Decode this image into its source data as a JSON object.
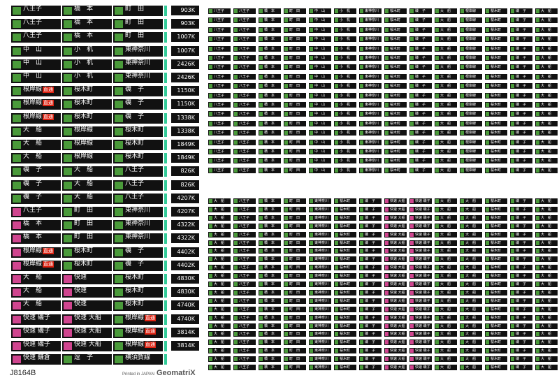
{
  "sheet": {
    "sku": "J8164B",
    "printed": "Printed in JAPAN",
    "brand": "GeomatriX"
  },
  "colors": {
    "plate": "#111111",
    "green": "#4a9a3a",
    "pink": "#d0458f",
    "red": "#dd2211",
    "endcap": "#33cc99"
  },
  "large_rows": [
    {
      "cells": [
        {
          "t": "八王子",
          "c": "green"
        },
        {
          "t": "橋　本",
          "c": "green"
        },
        {
          "t": "町　田",
          "c": "green"
        }
      ],
      "code": "903K"
    },
    {
      "cells": [
        {
          "t": "八王子",
          "c": "green"
        },
        {
          "t": "橋　本",
          "c": "green"
        },
        {
          "t": "町　田",
          "c": "green"
        }
      ],
      "code": "903K"
    },
    {
      "cells": [
        {
          "t": "八王子",
          "c": "green"
        },
        {
          "t": "橋　本",
          "c": "green"
        },
        {
          "t": "町　田",
          "c": "green"
        }
      ],
      "code": "1007K"
    },
    {
      "cells": [
        {
          "t": "中　山",
          "c": "green"
        },
        {
          "t": "小　机",
          "c": "green"
        },
        {
          "t": "東神奈川",
          "c": "green"
        }
      ],
      "code": "1007K"
    },
    {
      "cells": [
        {
          "t": "中　山",
          "c": "green"
        },
        {
          "t": "小　机",
          "c": "green"
        },
        {
          "t": "東神奈川",
          "c": "green"
        }
      ],
      "code": "2426K"
    },
    {
      "cells": [
        {
          "t": "中　山",
          "c": "green"
        },
        {
          "t": "小　机",
          "c": "green"
        },
        {
          "t": "東神奈川",
          "c": "green"
        }
      ],
      "code": "2426K"
    },
    {
      "cells": [
        {
          "t": "根岸線",
          "c": "green",
          "red": "直通"
        },
        {
          "t": "桜木町",
          "c": "green"
        },
        {
          "t": "磯　子",
          "c": "green"
        }
      ],
      "code": "1150K"
    },
    {
      "cells": [
        {
          "t": "根岸線",
          "c": "green",
          "red": "直通"
        },
        {
          "t": "桜木町",
          "c": "green"
        },
        {
          "t": "磯　子",
          "c": "green"
        }
      ],
      "code": "1150K"
    },
    {
      "cells": [
        {
          "t": "根岸線",
          "c": "green",
          "red": "直通"
        },
        {
          "t": "桜木町",
          "c": "green"
        },
        {
          "t": "磯　子",
          "c": "green"
        }
      ],
      "code": "1338K"
    },
    {
      "cells": [
        {
          "t": "大　船",
          "c": "green"
        },
        {
          "t": "根岸線",
          "c": "green"
        },
        {
          "t": "桜木町",
          "c": "green"
        }
      ],
      "code": "1338K"
    },
    {
      "cells": [
        {
          "t": "大　船",
          "c": "green"
        },
        {
          "t": "根岸線",
          "c": "green"
        },
        {
          "t": "桜木町",
          "c": "green"
        }
      ],
      "code": "1849K"
    },
    {
      "cells": [
        {
          "t": "大　船",
          "c": "green"
        },
        {
          "t": "根岸線",
          "c": "green"
        },
        {
          "t": "桜木町",
          "c": "green"
        }
      ],
      "code": "1849K"
    },
    {
      "cells": [
        {
          "t": "磯　子",
          "c": "green"
        },
        {
          "t": "大　船",
          "c": "green"
        },
        {
          "t": "八王子",
          "c": "green"
        }
      ],
      "code": "826K"
    },
    {
      "cells": [
        {
          "t": "磯　子",
          "c": "green"
        },
        {
          "t": "大　船",
          "c": "green"
        },
        {
          "t": "八王子",
          "c": "green"
        }
      ],
      "code": "826K"
    },
    {
      "cells": [
        {
          "t": "磯　子",
          "c": "green"
        },
        {
          "t": "大　船",
          "c": "green"
        },
        {
          "t": "八王子",
          "c": "green"
        }
      ],
      "code": "4207K"
    },
    {
      "cells": [
        {
          "t": "八王子",
          "c": "pink"
        },
        {
          "t": "町　田",
          "c": "green"
        },
        {
          "t": "東神奈川",
          "c": "green"
        }
      ],
      "code": "4207K"
    },
    {
      "cells": [
        {
          "t": "橋　本",
          "c": "pink"
        },
        {
          "t": "町　田",
          "c": "green"
        },
        {
          "t": "東神奈川",
          "c": "green"
        }
      ],
      "code": "4322K"
    },
    {
      "cells": [
        {
          "t": "橋　本",
          "c": "pink"
        },
        {
          "t": "町　田",
          "c": "green"
        },
        {
          "t": "東神奈川",
          "c": "green"
        }
      ],
      "code": "4322K"
    },
    {
      "cells": [
        {
          "t": "根岸線",
          "c": "pink",
          "red": "直通"
        },
        {
          "t": "桜木町",
          "c": "green"
        },
        {
          "t": "磯　子",
          "c": "green"
        }
      ],
      "code": "4402K"
    },
    {
      "cells": [
        {
          "t": "根岸線",
          "c": "pink",
          "red": "直通"
        },
        {
          "t": "桜木町",
          "c": "green"
        },
        {
          "t": "磯　子",
          "c": "green"
        }
      ],
      "code": "4402K"
    },
    {
      "cells": [
        {
          "t": "大　船",
          "c": "pink"
        },
        {
          "t": "快速",
          "c": "pink"
        },
        {
          "t": "桜木町",
          "c": "green"
        }
      ],
      "code": "4830K"
    },
    {
      "cells": [
        {
          "t": "大　船",
          "c": "pink"
        },
        {
          "t": "快速",
          "c": "pink"
        },
        {
          "t": "桜木町",
          "c": "green"
        }
      ],
      "code": "4830K"
    },
    {
      "cells": [
        {
          "t": "大　船",
          "c": "pink"
        },
        {
          "t": "快速",
          "c": "pink"
        },
        {
          "t": "桜木町",
          "c": "green"
        }
      ],
      "code": "4740K"
    },
    {
      "cells": [
        {
          "t": "快速 磯子",
          "c": "pink"
        },
        {
          "t": "快速 大船",
          "c": "pink"
        },
        {
          "t": "根岸線",
          "c": "green",
          "red": "直通"
        }
      ],
      "code": "4740K"
    },
    {
      "cells": [
        {
          "t": "快速 磯子",
          "c": "pink"
        },
        {
          "t": "快速 大船",
          "c": "pink"
        },
        {
          "t": "根岸線",
          "c": "green",
          "red": "直通"
        }
      ],
      "code": "3814K"
    },
    {
      "cells": [
        {
          "t": "快速 磯子",
          "c": "pink"
        },
        {
          "t": "快速 大船",
          "c": "pink"
        },
        {
          "t": "根岸線",
          "c": "green",
          "red": "直通"
        }
      ],
      "code": "3814K"
    },
    {
      "cells": [
        {
          "t": "快速 鎌倉",
          "c": "pink"
        },
        {
          "t": "逗　子",
          "c": "green"
        },
        {
          "t": "横須賀線",
          "c": "green"
        }
      ],
      "code": ""
    }
  ],
  "small_top_rows": [
    [
      "八王子",
      "八王子",
      "橋　本",
      "町　田",
      "中　山",
      "小　机",
      "東神奈川",
      "桜木町",
      "磯　子",
      "大　船",
      "根岸線",
      "桜木町",
      "磯　子",
      "大　船"
    ],
    [
      "八王子",
      "八王子",
      "橋　本",
      "町　田",
      "中　山",
      "小　机",
      "東神奈川",
      "桜木町",
      "磯　子",
      "大　船",
      "根岸線",
      "桜木町",
      "磯　子",
      "大　船"
    ],
    [
      "八王子",
      "八王子",
      "橋　本",
      "町　田",
      "中　山",
      "小　机",
      "東神奈川",
      "桜木町",
      "磯　子",
      "大　船",
      "根岸線",
      "桜木町",
      "磯　子",
      "大　船"
    ],
    [
      "八王子",
      "八王子",
      "橋　本",
      "町　田",
      "中　山",
      "小　机",
      "東神奈川",
      "桜木町",
      "磯　子",
      "大　船",
      "根岸線",
      "桜木町",
      "磯　子",
      "大　船"
    ],
    [
      "八王子",
      "八王子",
      "橋　本",
      "町　田",
      "中　山",
      "小　机",
      "東神奈川",
      "桜木町",
      "磯　子",
      "大　船",
      "根岸線",
      "桜木町",
      "磯　子",
      "大　船"
    ],
    [
      "八王子",
      "八王子",
      "橋　本",
      "町　田",
      "中　山",
      "小　机",
      "東神奈川",
      "桜木町",
      "磯　子",
      "大　船",
      "根岸線",
      "桜木町",
      "磯　子",
      "大　船"
    ],
    [
      "八王子",
      "八王子",
      "橋　本",
      "町　田",
      "中　山",
      "小　机",
      "東神奈川",
      "桜木町",
      "磯　子",
      "大　船",
      "根岸線",
      "桜木町",
      "磯　子",
      "大　船"
    ],
    [
      "八王子",
      "八王子",
      "橋　本",
      "町　田",
      "中　山",
      "小　机",
      "東神奈川",
      "桜木町",
      "磯　子",
      "大　船",
      "根岸線",
      "桜木町",
      "磯　子",
      "大　船"
    ],
    [
      "八王子",
      "八王子",
      "橋　本",
      "町　田",
      "中　山",
      "小　机",
      "東神奈川",
      "桜木町",
      "磯　子",
      "大　船",
      "根岸線",
      "桜木町",
      "磯　子",
      "大　船"
    ],
    [
      "八王子",
      "八王子",
      "橋　本",
      "町　田",
      "中　山",
      "小　机",
      "東神奈川",
      "桜木町",
      "磯　子",
      "大　船",
      "根岸線",
      "桜木町",
      "磯　子",
      "大　船"
    ],
    [
      "八王子",
      "八王子",
      "橋　本",
      "町　田",
      "中　山",
      "小　机",
      "東神奈川",
      "桜木町",
      "磯　子",
      "大　船",
      "根岸線",
      "桜木町",
      "磯　子",
      "大　船"
    ],
    [
      "八王子",
      "八王子",
      "橋　本",
      "町　田",
      "中　山",
      "小　机",
      "東神奈川",
      "桜木町",
      "磯　子",
      "大　船",
      "根岸線",
      "桜木町",
      "磯　子",
      "大　船"
    ],
    [
      "八王子",
      "八王子",
      "橋　本",
      "町　田",
      "中　山",
      "小　机",
      "東神奈川",
      "桜木町",
      "磯　子",
      "大　船",
      "根岸線",
      "桜木町",
      "磯　子",
      "大　船"
    ],
    [
      "八王子",
      "八王子",
      "橋　本",
      "町　田",
      "中　山",
      "小　机",
      "東神奈川",
      "桜木町",
      "磯　子",
      "大　船",
      "根岸線",
      "桜木町",
      "磯　子",
      "大　船"
    ],
    [
      "八王子",
      "八王子",
      "橋　本",
      "町　田",
      "中　山",
      "小　机",
      "東神奈川",
      "桜木町",
      "磯　子",
      "大　船",
      "根岸線",
      "桜木町",
      "磯　子",
      "大　船"
    ],
    [
      "八王子",
      "八王子",
      "橋　本",
      "町　田",
      "中　山",
      "小　机",
      "東神奈川",
      "桜木町",
      "磯　子",
      "大　船",
      "根岸線",
      "桜木町",
      "磯　子",
      "大　船"
    ],
    [
      "八王子",
      "八王子",
      "橋　本",
      "町　田",
      "中　山",
      "小　机",
      "東神奈川",
      "桜木町",
      "磯　子",
      "大　船",
      "根岸線",
      "桜木町",
      "磯　子",
      "大　船"
    ],
    [
      "八王子",
      "八王子",
      "橋　本",
      "町　田",
      "中　山",
      "小　机",
      "東神奈川",
      "桜木町",
      "磯　子",
      "大　船",
      "根岸線",
      "桜木町",
      "磯　子",
      "大　船"
    ]
  ],
  "small_bottom_rows": [
    [
      "大　船",
      "八王子",
      "橋　本",
      "町　田",
      "東神奈川",
      "桜木町",
      "磯　子",
      "快速 大船",
      "快速 磯子",
      "大　船",
      "大　船",
      "桜木町",
      "磯　子",
      "大　船"
    ],
    [
      "大　船",
      "八王子",
      "橋　本",
      "町　田",
      "東神奈川",
      "桜木町",
      "磯　子",
      "快速 大船",
      "快速 磯子",
      "大　船",
      "大　船",
      "桜木町",
      "磯　子",
      "大　船"
    ],
    [
      "大　船",
      "八王子",
      "橋　本",
      "町　田",
      "東神奈川",
      "桜木町",
      "磯　子",
      "快速 大船",
      "快速 磯子",
      "大　船",
      "大　船",
      "桜木町",
      "磯　子",
      "大　船"
    ],
    [
      "大　船",
      "八王子",
      "橋　本",
      "町　田",
      "東神奈川",
      "桜木町",
      "磯　子",
      "快速 大船",
      "快速 磯子",
      "大　船",
      "大　船",
      "桜木町",
      "磯　子",
      "大　船"
    ],
    [
      "大　船",
      "八王子",
      "橋　本",
      "町　田",
      "東神奈川",
      "桜木町",
      "磯　子",
      "快速 大船",
      "快速 磯子",
      "大　船",
      "大　船",
      "桜木町",
      "磯　子",
      "大　船"
    ],
    [
      "大　船",
      "八王子",
      "橋　本",
      "町　田",
      "東神奈川",
      "桜木町",
      "磯　子",
      "快速 大船",
      "快速 磯子",
      "大　船",
      "大　船",
      "桜木町",
      "磯　子",
      "大　船"
    ],
    [
      "大　船",
      "八王子",
      "橋　本",
      "町　田",
      "東神奈川",
      "桜木町",
      "磯　子",
      "快速 大船",
      "快速 磯子",
      "大　船",
      "大　船",
      "桜木町",
      "磯　子",
      "大　船"
    ],
    [
      "大　船",
      "八王子",
      "橋　本",
      "町　田",
      "東神奈川",
      "桜木町",
      "磯　子",
      "快速 大船",
      "快速 磯子",
      "大　船",
      "大　船",
      "桜木町",
      "磯　子",
      "大　船"
    ],
    [
      "大　船",
      "八王子",
      "橋　本",
      "町　田",
      "東神奈川",
      "桜木町",
      "磯　子",
      "快速 大船",
      "快速 磯子",
      "大　船",
      "大　船",
      "桜木町",
      "磯　子",
      "大　船"
    ],
    [
      "大　船",
      "八王子",
      "橋　本",
      "町　田",
      "東神奈川",
      "桜木町",
      "磯　子",
      "快速 大船",
      "快速 磯子",
      "大　船",
      "大　船",
      "桜木町",
      "磯　子",
      "大　船"
    ],
    [
      "大　船",
      "八王子",
      "橋　本",
      "町　田",
      "東神奈川",
      "桜木町",
      "磯　子",
      "快速 大船",
      "快速 磯子",
      "大　船",
      "大　船",
      "桜木町",
      "磯　子",
      "大　船"
    ],
    [
      "大　船",
      "八王子",
      "橋　本",
      "町　田",
      "東神奈川",
      "桜木町",
      "磯　子",
      "快速 大船",
      "快速 磯子",
      "大　船",
      "大　船",
      "桜木町",
      "磯　子",
      "大　船"
    ],
    [
      "大　船",
      "八王子",
      "橋　本",
      "町　田",
      "東神奈川",
      "桜木町",
      "磯　子",
      "快速 大船",
      "快速 磯子",
      "大　船",
      "大　船",
      "桜木町",
      "磯　子",
      "大　船"
    ],
    [
      "大　船",
      "八王子",
      "橋　本",
      "町　田",
      "東神奈川",
      "桜木町",
      "磯　子",
      "快速 大船",
      "快速 磯子",
      "大　船",
      "大　船",
      "桜木町",
      "磯　子",
      "大　船"
    ],
    [
      "大　船",
      "八王子",
      "橋　本",
      "町　田",
      "東神奈川",
      "桜木町",
      "磯　子",
      "快速 大船",
      "快速 磯子",
      "大　船",
      "大　船",
      "桜木町",
      "磯　子",
      "大　船"
    ],
    [
      "大　船",
      "八王子",
      "橋　本",
      "町　田",
      "東神奈川",
      "桜木町",
      "磯　子",
      "快速 大船",
      "快速 磯子",
      "大　船",
      "大　船",
      "桜木町",
      "磯　子",
      "大　船"
    ],
    [
      "大　船",
      "八王子",
      "橋　本",
      "町　田",
      "東神奈川",
      "桜木町",
      "磯　子",
      "快速 大船",
      "快速 磯子",
      "大　船",
      "大　船",
      "桜木町",
      "磯　子",
      "大　船"
    ],
    [
      "大　船",
      "八王子",
      "橋　本",
      "町　田",
      "東神奈川",
      "桜木町",
      "磯　子",
      "快速 大船",
      "快速 磯子",
      "大　船",
      "大　船",
      "桜木町",
      "磯　子",
      "大　船"
    ],
    [
      "大　船",
      "八王子",
      "橋　本",
      "町　田",
      "東神奈川",
      "桜木町",
      "磯　子",
      "快速 大船",
      "快速 磯子",
      "大　船",
      "大　船",
      "桜木町",
      "磯　子",
      "大　船"
    ],
    [
      "大　船",
      "八王子",
      "橋　本",
      "町　田",
      "東神奈川",
      "桜木町",
      "磯　子",
      "快速 大船",
      "快速 磯子",
      "大　船",
      "大　船",
      "桜木町",
      "磯　子",
      "大　船"
    ],
    [
      "大　船",
      "八王子",
      "橋　本",
      "町　田",
      "東神奈川",
      "桜木町",
      "磯　子",
      "快速 大船",
      "快速 磯子",
      "大　船",
      "大　船",
      "桜木町",
      "磯　子",
      "大　船"
    ]
  ]
}
